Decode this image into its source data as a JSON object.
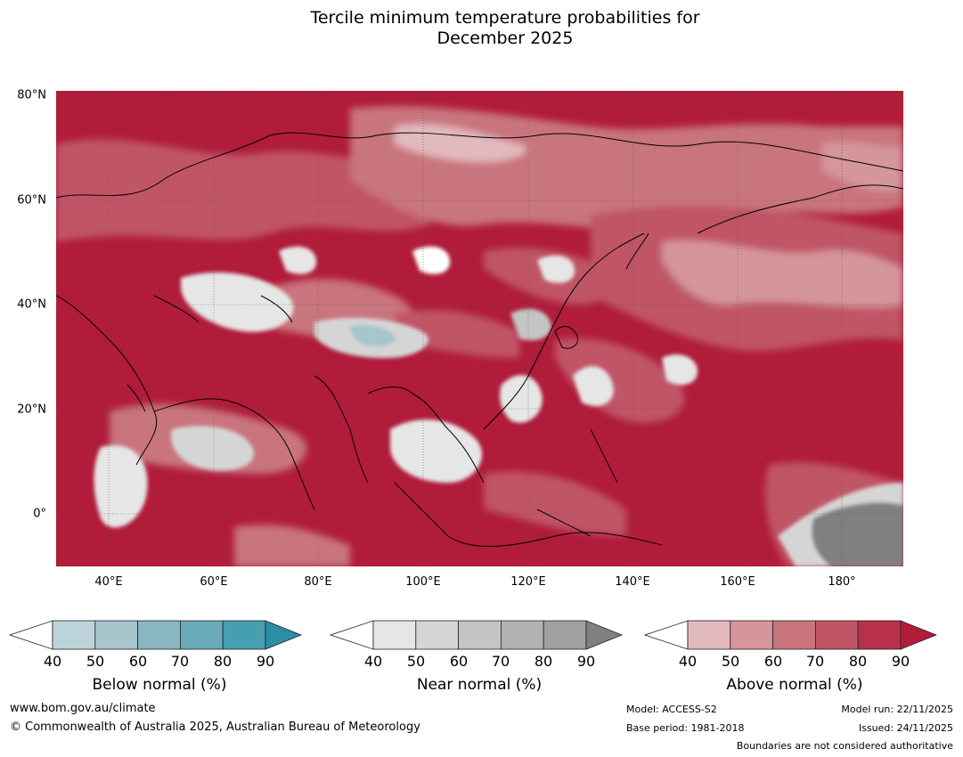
{
  "title_line1": "Tercile minimum temperature probabilities for",
  "title_line2": "December 2025",
  "lat_labels": [
    "80°N",
    "60°N",
    "40°N",
    "20°N",
    "0°"
  ],
  "lon_labels": [
    "40°E",
    "60°E",
    "80°E",
    "100°E",
    "120°E",
    "140°E",
    "160°E",
    "180°"
  ],
  "colorbars": [
    {
      "label": "Below normal (%)",
      "ticks": [
        "40",
        "50",
        "60",
        "70",
        "80",
        "90"
      ],
      "colors": [
        "#ffffff",
        "#bed4db",
        "#a6c5cc",
        "#89b6c1",
        "#6aabb9",
        "#459fb0",
        "#2b8ea5"
      ]
    },
    {
      "label": "Near normal (%)",
      "ticks": [
        "40",
        "50",
        "60",
        "70",
        "80",
        "90"
      ],
      "colors": [
        "#ffffff",
        "#e6e6e6",
        "#d5d5d5",
        "#c4c4c4",
        "#b2b2b2",
        "#a0a0a0",
        "#808080"
      ]
    },
    {
      "label": "Above normal (%)",
      "ticks": [
        "40",
        "50",
        "60",
        "70",
        "80",
        "90"
      ],
      "colors": [
        "#ffffff",
        "#e2b9bd",
        "#d4959b",
        "#c9747d",
        "#c05566",
        "#b7314a",
        "#b01c3a"
      ]
    }
  ],
  "footer": {
    "website": "www.bom.gov.au/climate",
    "copyright": "© Commonwealth of Australia 2025, Australian Bureau of Meteorology",
    "model": "Model: ACCESS-S2",
    "base_period": "Base period: 1981-2018",
    "model_run": "Model run: 22/11/2025",
    "issued": "Issued: 24/11/2025",
    "disclaimer": "Boundaries are not considered authoritative"
  }
}
